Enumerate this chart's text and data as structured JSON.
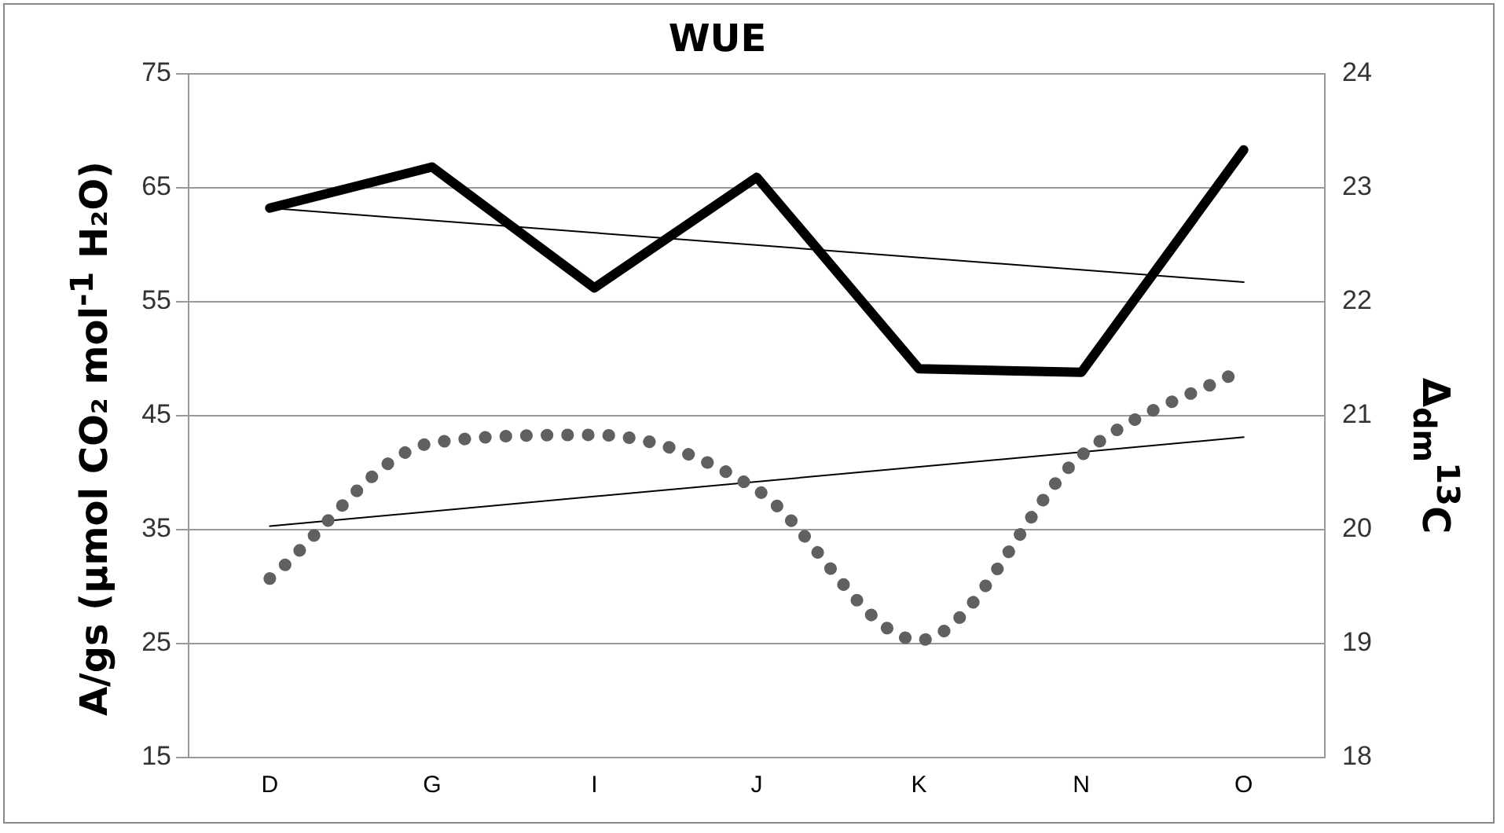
{
  "chart_data": {
    "type": "line",
    "title": "WUE",
    "ylabel": "A/gs (µmol CO₂ mol$^{-1}$ H₂O)",
    "y2label": "Δ$_{dm}$$^{13}$C",
    "categories": [
      "D",
      "G",
      "I",
      "J",
      "K",
      "N",
      "O"
    ],
    "series": [
      {
        "color": "#000000",
        "values": [
          63.2,
          66.8,
          56.2,
          65.9,
          49.1,
          48.8,
          68.3
        ],
        "line_style": "solid"
      },
      {
        "color": "#000000",
        "x": [
          "D",
          "O"
        ],
        "values": [
          63.2,
          56.7
        ],
        "line_style": "solid"
      },
      {
        "color": "#606060",
        "axis": "y2",
        "values": [
          19.57,
          20.76,
          20.83,
          20.35,
          19.03,
          20.65,
          21.41
        ],
        "line_style": "dotted"
      },
      {
        "color": "#000000",
        "axis": "y2",
        "x": [
          "D",
          "O"
        ],
        "values": [
          20.03,
          20.81
        ],
        "line_style": "solid"
      }
    ],
    "ylim": [
      15,
      75
    ],
    "yticks": [
      15,
      25,
      35,
      45,
      55,
      65,
      75
    ],
    "y2lim": [
      18,
      24
    ],
    "y2ticks": [
      18,
      19,
      20,
      21,
      22,
      23,
      24
    ],
    "grid": "y",
    "legend": false,
    "marker": "none"
  }
}
